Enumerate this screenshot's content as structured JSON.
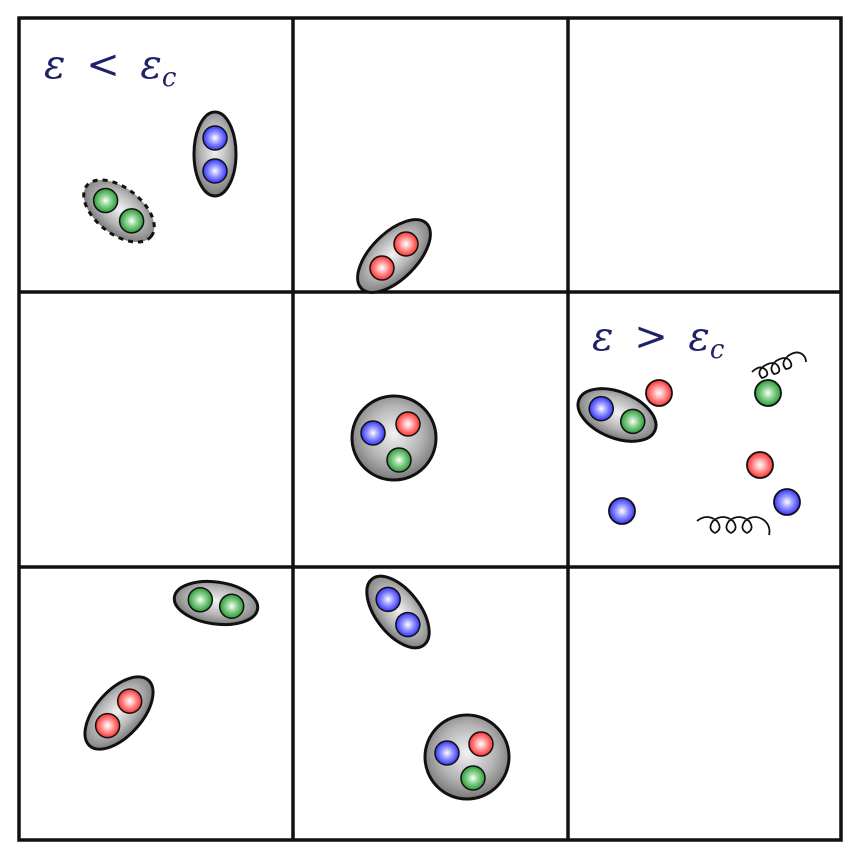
{
  "labels": {
    "low": {
      "symbol": "ε",
      "relation": "<",
      "sub_symbol": "ε",
      "subscript": "c"
    },
    "high": {
      "symbol": "ε",
      "relation": ">",
      "sub_symbol": "ε",
      "subscript": "c"
    }
  },
  "grid": {
    "rows": 3,
    "cols": 3
  },
  "colors": {
    "quark_red": "#ff2a2a",
    "quark_green": "#1f9a2a",
    "quark_blue": "#2b2bff",
    "label": "#1f2266",
    "hadron_fill": "#8a8a8a",
    "border": "#111111"
  },
  "hadrons": [
    {
      "kind": "meson",
      "cell": [
        0,
        0
      ],
      "quarks": [
        "blue",
        "blue"
      ],
      "style": "solid"
    },
    {
      "kind": "meson",
      "cell": [
        0,
        0
      ],
      "quarks": [
        "green",
        "green"
      ],
      "style": "dashed"
    },
    {
      "kind": "meson",
      "cell": [
        0,
        1
      ],
      "quarks": [
        "red",
        "red"
      ],
      "style": "solid"
    },
    {
      "kind": "baryon",
      "cell": [
        1,
        1
      ],
      "quarks": [
        "blue",
        "red",
        "green"
      ],
      "style": "solid"
    },
    {
      "kind": "meson",
      "cell": [
        1,
        2
      ],
      "quarks": [
        "blue",
        "green"
      ],
      "style": "solid"
    },
    {
      "kind": "meson",
      "cell": [
        2,
        0
      ],
      "quarks": [
        "green",
        "green"
      ],
      "style": "solid"
    },
    {
      "kind": "meson",
      "cell": [
        2,
        0
      ],
      "quarks": [
        "red",
        "red"
      ],
      "style": "solid"
    },
    {
      "kind": "meson",
      "cell": [
        2,
        1
      ],
      "quarks": [
        "blue",
        "blue"
      ],
      "style": "solid"
    },
    {
      "kind": "baryon",
      "cell": [
        2,
        1
      ],
      "quarks": [
        "blue",
        "red",
        "green"
      ],
      "style": "solid"
    }
  ],
  "free_quarks": [
    {
      "cell": [
        1,
        2
      ],
      "color": "red"
    },
    {
      "cell": [
        1,
        2
      ],
      "color": "green"
    },
    {
      "cell": [
        1,
        2
      ],
      "color": "red"
    },
    {
      "cell": [
        1,
        2
      ],
      "color": "blue"
    },
    {
      "cell": [
        1,
        2
      ],
      "color": "blue"
    }
  ],
  "gluons": [
    {
      "cell": [
        1,
        2
      ],
      "icon": "gluon-coil-icon"
    },
    {
      "cell": [
        1,
        2
      ],
      "icon": "gluon-coil-icon"
    }
  ]
}
